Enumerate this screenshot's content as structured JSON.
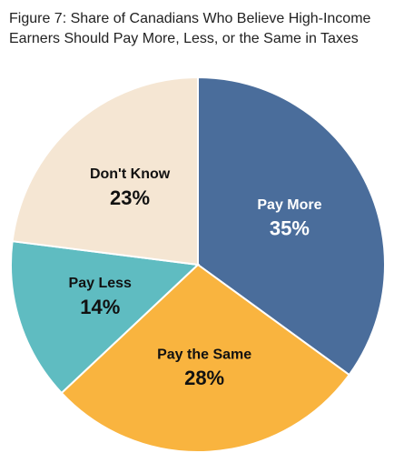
{
  "chart_data": {
    "type": "pie",
    "title": "Figure 7: Share of Canadians Who Believe High-Income Earners Should Pay More, Less, or the Same in Taxes",
    "categories": [
      "Pay More",
      "Pay the Same",
      "Pay Less",
      "Don't Know"
    ],
    "values": [
      35,
      28,
      14,
      23
    ],
    "value_labels": [
      "35%",
      "28%",
      "14%",
      "23%"
    ],
    "colors": [
      "#4a6d9b",
      "#f9b43f",
      "#5fbcc1",
      "#f5e6d3"
    ]
  }
}
